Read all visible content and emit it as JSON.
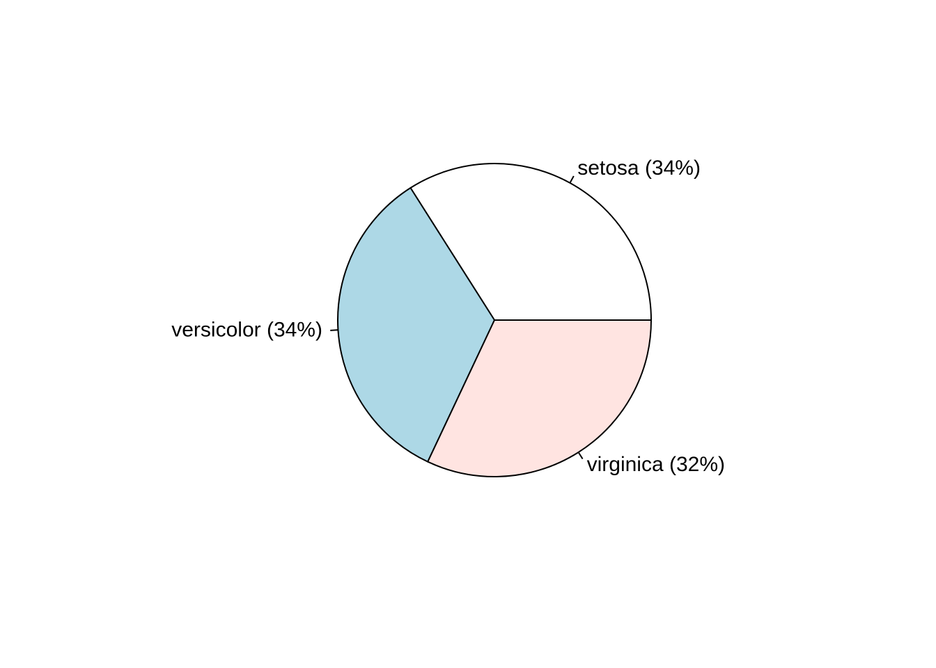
{
  "chart_data": {
    "type": "pie",
    "slices": [
      {
        "name": "setosa",
        "label": "setosa (34%)",
        "value": 34,
        "color": "#ffffff"
      },
      {
        "name": "versicolor",
        "label": "versicolor (34%)",
        "value": 34,
        "color": "#add8e6"
      },
      {
        "name": "virginica",
        "label": "virginica (32%)",
        "value": 32,
        "color": "#ffe4e1"
      }
    ],
    "direction": "counterclockwise",
    "start_angle_deg": 0,
    "legend": "none"
  }
}
